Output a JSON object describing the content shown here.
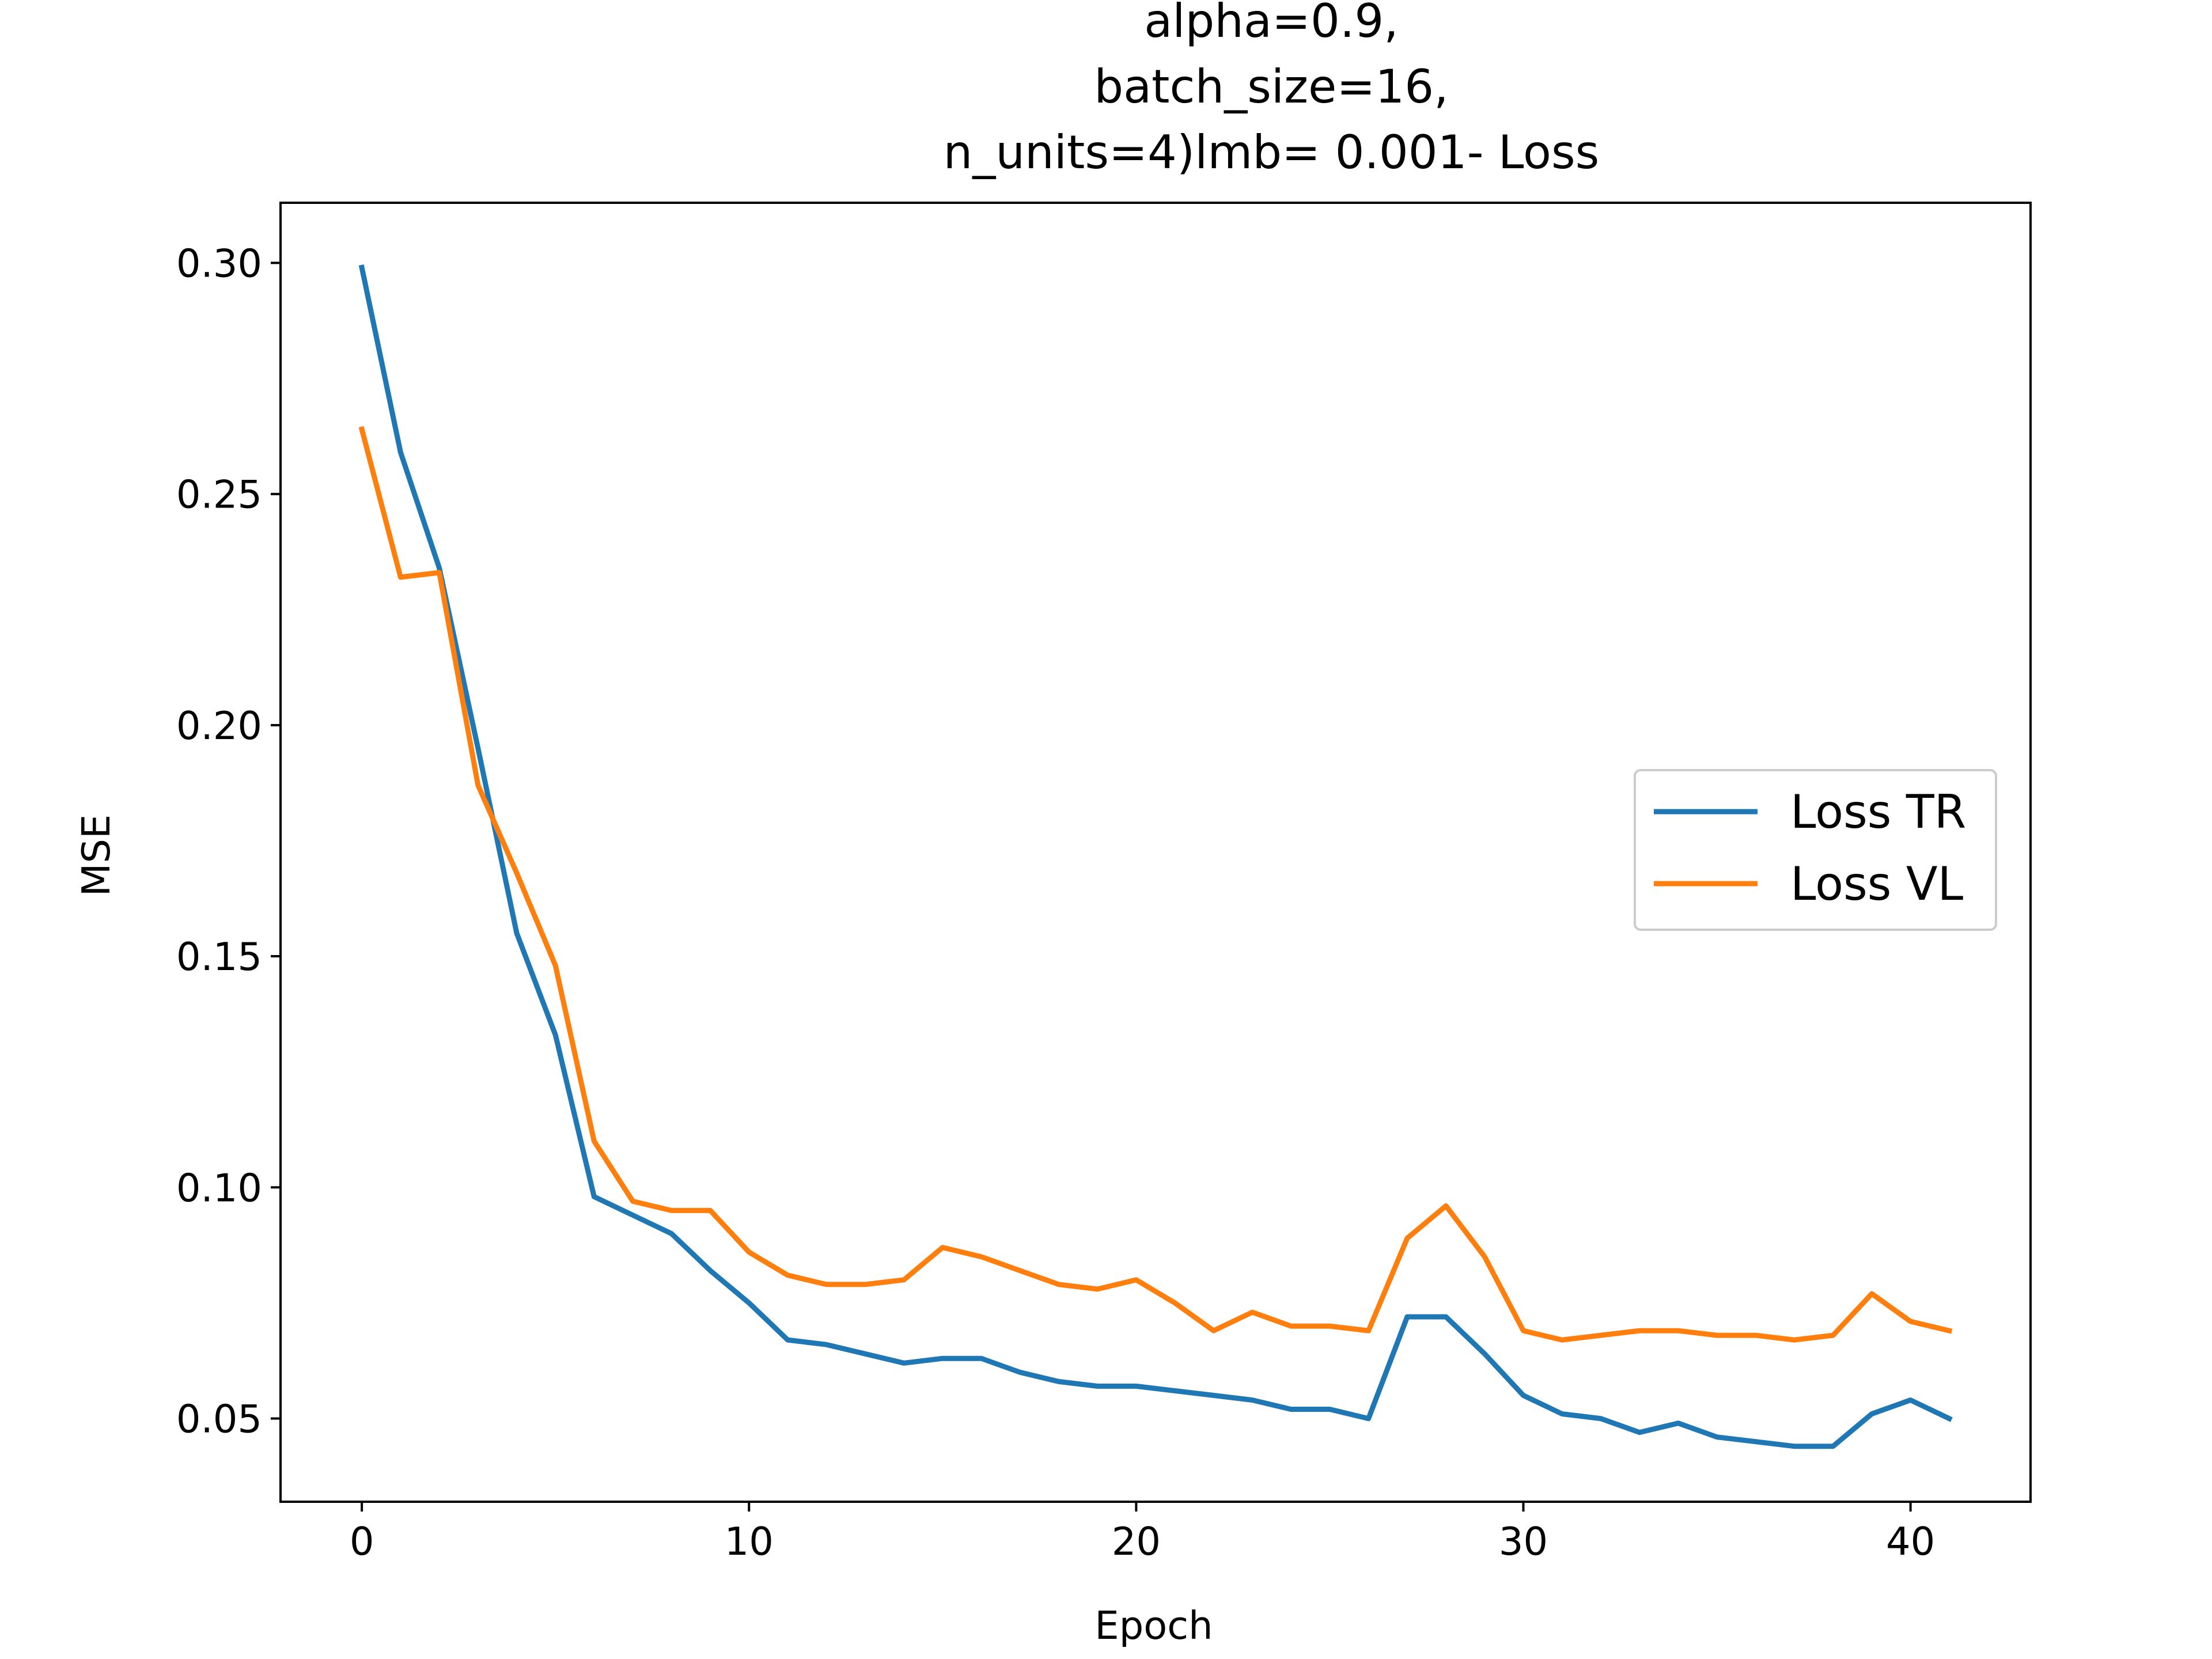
{
  "chart_data": {
    "type": "line",
    "title_lines": [
      "alpha=0.9,",
      "batch_size=16,",
      "n_units=4)lmb= 0.001- Loss"
    ],
    "xlabel": "Epoch",
    "ylabel": "MSE",
    "xlim": [
      -2.1,
      43.1
    ],
    "ylim": [
      0.032,
      0.313
    ],
    "xticks": [
      0,
      10,
      20,
      30,
      40
    ],
    "xtick_labels": [
      "0",
      "10",
      "20",
      "30",
      "40"
    ],
    "yticks": [
      0.05,
      0.1,
      0.15,
      0.2,
      0.25,
      0.3
    ],
    "ytick_labels": [
      "0.05",
      "0.10",
      "0.15",
      "0.20",
      "0.25",
      "0.30"
    ],
    "grid": false,
    "legend_position": "center-right",
    "x": [
      0,
      1,
      2,
      3,
      4,
      5,
      6,
      7,
      8,
      9,
      10,
      11,
      12,
      13,
      14,
      15,
      16,
      17,
      18,
      19,
      20,
      21,
      22,
      23,
      24,
      25,
      26,
      27,
      28,
      29,
      30,
      31,
      32,
      33,
      34,
      35,
      36,
      37,
      38,
      39,
      40,
      41
    ],
    "series": [
      {
        "name": "Loss TR",
        "color": "#1f77b4",
        "values": [
          0.299,
          0.259,
          0.234,
          0.195,
          0.155,
          0.133,
          0.098,
          0.094,
          0.09,
          0.082,
          0.075,
          0.067,
          0.066,
          0.064,
          0.062,
          0.063,
          0.063,
          0.06,
          0.058,
          0.057,
          0.057,
          0.056,
          0.055,
          0.054,
          0.052,
          0.052,
          0.05,
          0.072,
          0.072,
          0.064,
          0.055,
          0.051,
          0.05,
          0.047,
          0.049,
          0.046,
          0.045,
          0.044,
          0.044,
          0.051,
          0.054,
          0.05
        ]
      },
      {
        "name": "Loss VL",
        "color": "#ff7f0e",
        "values": [
          0.264,
          0.232,
          0.233,
          0.187,
          0.168,
          0.148,
          0.11,
          0.097,
          0.095,
          0.095,
          0.086,
          0.081,
          0.079,
          0.079,
          0.08,
          0.087,
          0.085,
          0.082,
          0.079,
          0.078,
          0.08,
          0.075,
          0.069,
          0.073,
          0.07,
          0.07,
          0.069,
          0.089,
          0.096,
          0.085,
          0.069,
          0.067,
          0.068,
          0.069,
          0.069,
          0.068,
          0.068,
          0.067,
          0.068,
          0.077,
          0.071,
          0.069
        ]
      }
    ]
  }
}
